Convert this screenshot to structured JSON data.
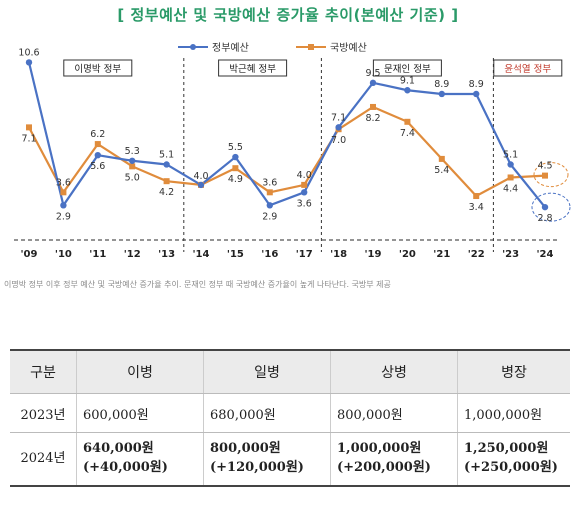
{
  "chart_data": {
    "type": "line",
    "title": "[ 정부예산 및 국방예산 증가율 추이(본예산 기준) ]",
    "categories": [
      "'09",
      "'10",
      "'11",
      "'12",
      "'13",
      "'14",
      "'15",
      "'16",
      "'17",
      "'18",
      "'19",
      "'20",
      "'21",
      "'22",
      "'23",
      "'24"
    ],
    "series": [
      {
        "name": "정부예산",
        "color": "#4a72c4",
        "values": [
          10.6,
          2.9,
          5.6,
          5.3,
          5.1,
          4.0,
          5.5,
          2.9,
          3.6,
          7.1,
          9.5,
          9.1,
          8.9,
          8.9,
          5.1,
          2.8
        ]
      },
      {
        "name": "국방예산",
        "color": "#e08c3c",
        "values": [
          7.1,
          3.6,
          6.2,
          5.0,
          4.2,
          4.0,
          4.9,
          3.6,
          4.0,
          7.0,
          8.2,
          7.4,
          5.4,
          3.4,
          4.4,
          4.5
        ]
      }
    ],
    "periods": [
      {
        "label": "이명박 정부",
        "from": "'09",
        "to": "'13"
      },
      {
        "label": "박근혜 정부",
        "from": "'14",
        "to": "'17"
      },
      {
        "label": "문재인 정부",
        "from": "'18",
        "to": "'22"
      },
      {
        "label": "윤석열 정부",
        "from": "'23",
        "to": "'24"
      }
    ],
    "legend_position": "top",
    "grid": false,
    "ylim": [
      2,
      11
    ]
  },
  "caption": "이명박 정부 이후 정부 예산 및 국방예산 증가율 추이. 문재인 정부 때 국방예산 증가율이 높게 나타난다. 국방부 제공",
  "table": {
    "headers": [
      "구분",
      "이병",
      "일병",
      "상병",
      "병장"
    ],
    "rows": [
      {
        "label": "2023년",
        "cells": [
          {
            "value": "600,000원",
            "inc": ""
          },
          {
            "value": "680,000원",
            "inc": ""
          },
          {
            "value": "800,000원",
            "inc": ""
          },
          {
            "value": "1,000,000원",
            "inc": ""
          }
        ]
      },
      {
        "label": "2024년",
        "cells": [
          {
            "value": "640,000원",
            "inc": "(+40,000원)"
          },
          {
            "value": "800,000원",
            "inc": "(+120,000원)"
          },
          {
            "value": "1,000,000원",
            "inc": "(+200,000원)"
          },
          {
            "value": "1,250,000원",
            "inc": "(+250,000원)"
          }
        ]
      }
    ]
  },
  "colors": {
    "title": "#2a9a68",
    "gov_line": "#4a72c4",
    "def_line": "#e08c3c",
    "period_label_yoon": "#c0392b"
  }
}
